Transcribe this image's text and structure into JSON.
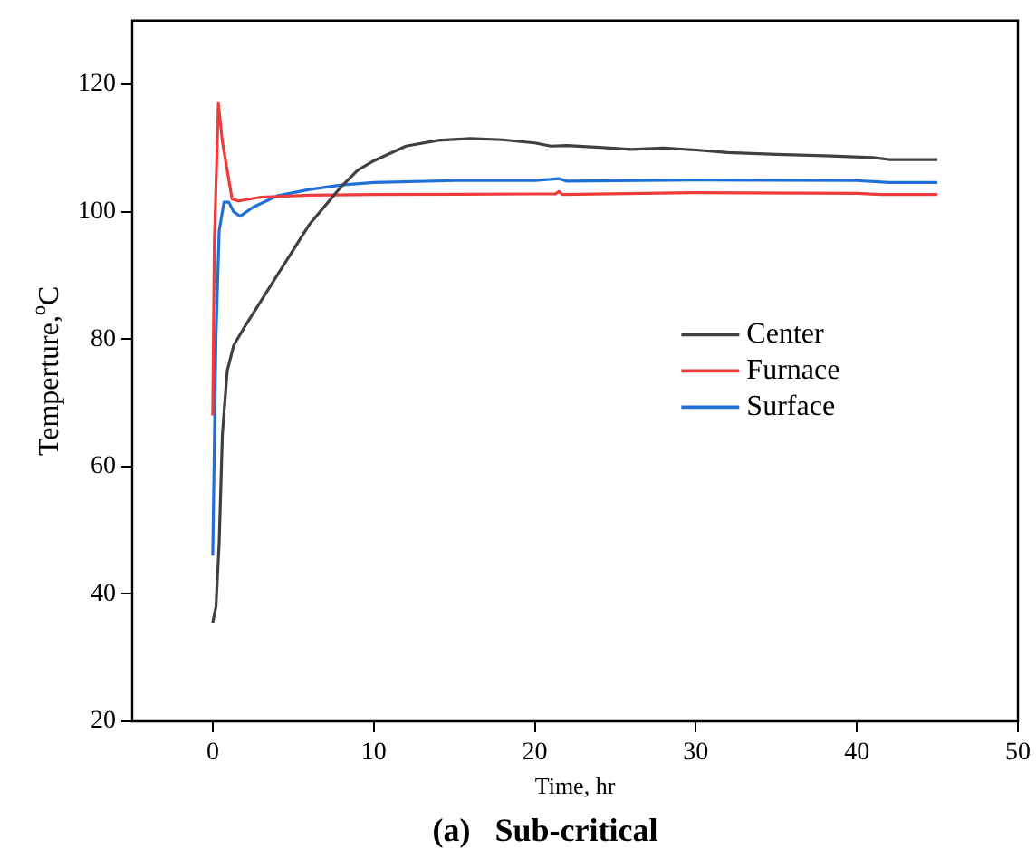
{
  "chart_data": {
    "type": "line",
    "title": "(a)   Sub-critical",
    "xlabel": "Time, hr",
    "ylabel": "Temperture,$^{o}$C",
    "xlim": [
      -5,
      50
    ],
    "xticks": [
      0,
      10,
      20,
      30,
      40,
      50
    ],
    "ylim": [
      20,
      130
    ],
    "yticks": [
      20,
      40,
      60,
      80,
      100,
      120
    ],
    "grid": false,
    "legend": "right",
    "marker": "none",
    "line_style": "solid",
    "series": [
      {
        "name": "Center",
        "color": "#404040",
        "x": [
          0,
          0.2,
          0.4,
          0.6,
          0.9,
          1.3,
          2,
          3,
          4,
          5,
          6,
          7,
          8,
          9,
          10,
          12,
          14,
          16,
          18,
          20,
          21,
          22,
          24,
          26,
          28,
          30,
          32,
          35,
          38,
          41,
          42,
          45
        ],
        "values": [
          35.5,
          38,
          48,
          65,
          75,
          79,
          82,
          86,
          90,
          94,
          98,
          101,
          104,
          106.5,
          108,
          110.3,
          111.2,
          111.5,
          111.3,
          110.8,
          110.3,
          110.4,
          110.1,
          109.8,
          110,
          109.7,
          109.3,
          109,
          108.8,
          108.5,
          108.2,
          108.2
        ]
      },
      {
        "name": "Furnace",
        "color": "#ee3b3b",
        "x": [
          0,
          0.1,
          0.35,
          0.6,
          1.2,
          1.6,
          3,
          6,
          10,
          20,
          21.3,
          21.5,
          21.7,
          30,
          40,
          41.5,
          45
        ],
        "values": [
          68,
          95,
          117,
          111,
          102,
          101.7,
          102.3,
          102.6,
          102.7,
          102.8,
          102.8,
          103.2,
          102.7,
          103,
          102.9,
          102.7,
          102.7
        ]
      },
      {
        "name": "Surface",
        "color": "#1f6fdb",
        "x": [
          0,
          0.2,
          0.4,
          0.7,
          1,
          1.3,
          1.7,
          2.5,
          4,
          6,
          8,
          10,
          15,
          20,
          21.5,
          22,
          30,
          40,
          42,
          45
        ],
        "values": [
          46,
          80,
          97,
          101.5,
          101.5,
          100,
          99.3,
          100.7,
          102.5,
          103.5,
          104.2,
          104.6,
          104.9,
          104.9,
          105.2,
          104.8,
          105,
          104.9,
          104.6,
          104.6
        ]
      }
    ]
  }
}
